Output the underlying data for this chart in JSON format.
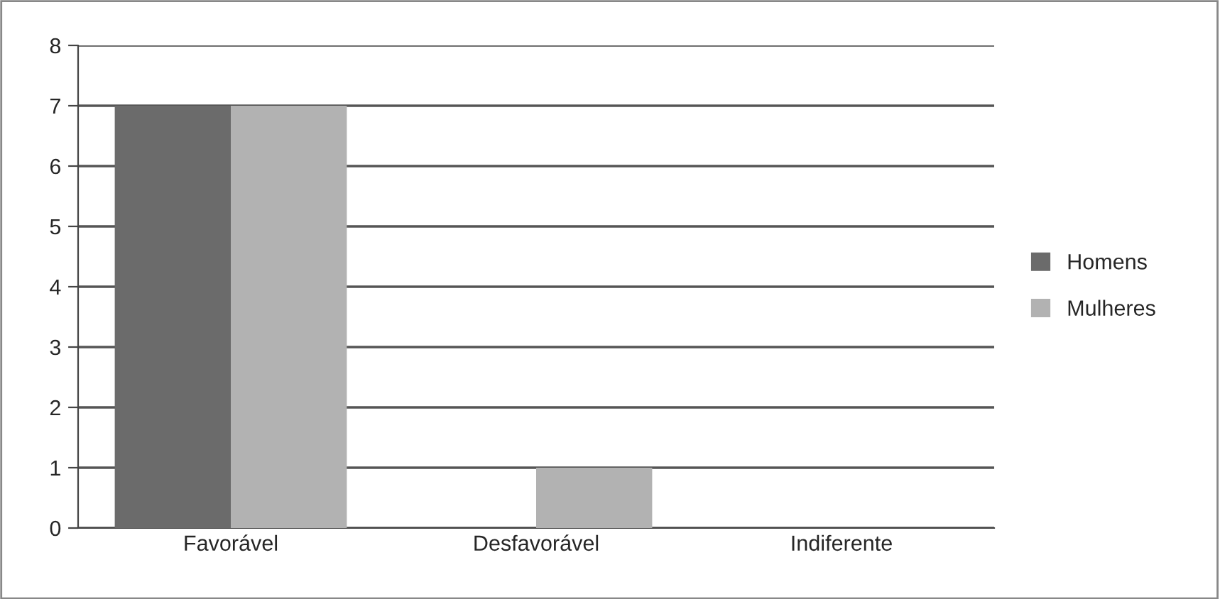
{
  "chart_data": {
    "type": "bar",
    "categories": [
      "Favorável",
      "Desfavorável",
      "Indiferente"
    ],
    "series": [
      {
        "name": "Homens",
        "color": "#6b6b6b",
        "values": [
          7,
          0,
          0
        ]
      },
      {
        "name": "Mulheres",
        "color": "#b2b2b2",
        "values": [
          7,
          1,
          0
        ]
      }
    ],
    "ylim": [
      0,
      8
    ],
    "yticks": [
      0,
      1,
      2,
      3,
      4,
      5,
      6,
      7,
      8
    ],
    "grid": "y",
    "legend": "right"
  }
}
